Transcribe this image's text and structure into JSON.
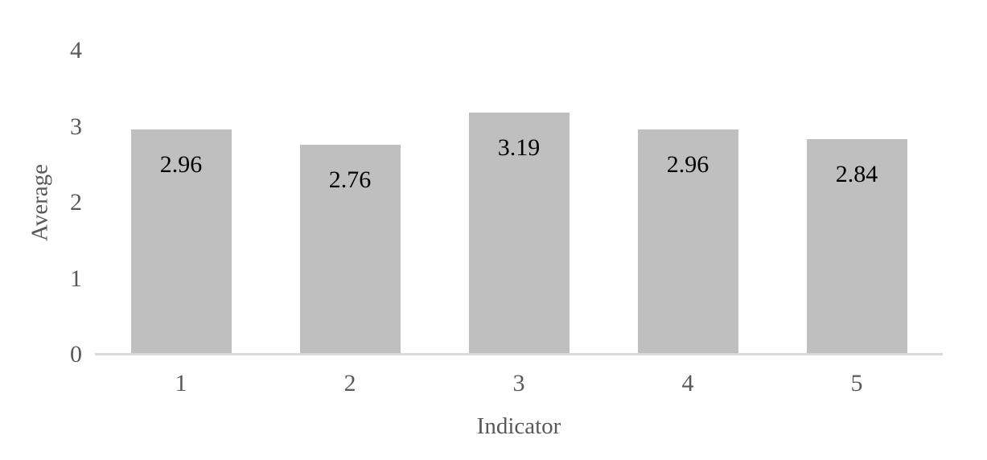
{
  "chart_data": {
    "type": "bar",
    "title": "",
    "xlabel": "Indicator",
    "ylabel": "Average",
    "categories": [
      "1",
      "2",
      "3",
      "4",
      "5"
    ],
    "values": [
      2.96,
      2.76,
      3.19,
      2.96,
      2.84
    ],
    "value_labels": [
      "2.96",
      "2.76",
      "3.19",
      "2.96",
      "2.84"
    ],
    "yticks": [
      0,
      1,
      2,
      3,
      4
    ],
    "ylim": [
      0,
      4
    ],
    "grid": "off",
    "legend": "none",
    "data_label_position": "inside-top"
  },
  "colors": {
    "background": "#ffffff",
    "bar_fill": "#bfbfbf",
    "axis_line": "#d9d9d9",
    "tick_text": "#595959",
    "axis_title_text": "#595959",
    "value_label_text": "#000000"
  }
}
